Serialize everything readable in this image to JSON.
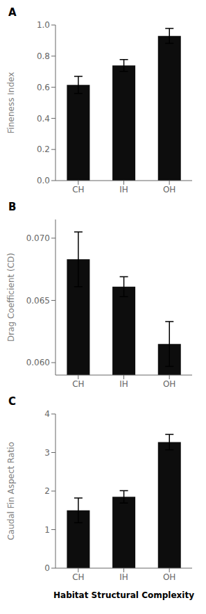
{
  "chart_data": [
    {
      "type": "bar",
      "title": "A",
      "categories": [
        "CH",
        "IH",
        "OH"
      ],
      "values": [
        0.615,
        0.74,
        0.93
      ],
      "errors": [
        0.055,
        0.038,
        0.048
      ],
      "color": "#0d0d0d",
      "ylabel": "Fineness Index",
      "ylim": [
        0.0,
        1.0
      ],
      "yticks": [
        {
          "value": 0.0,
          "label": "0.0"
        },
        0.2,
        0.4,
        0.6,
        0.8,
        {
          "value": 1.0,
          "label": "1.0"
        }
      ],
      "grid": false
    },
    {
      "type": "bar",
      "title": "B",
      "categories": [
        "CH",
        "IH",
        "OH"
      ],
      "values": [
        0.0683,
        0.0661,
        0.0615
      ],
      "errors": [
        0.0022,
        0.0008,
        0.0018
      ],
      "color": "#0d0d0d",
      "ylabel": "Drag Coefficient (CD)",
      "ylim": [
        0.059,
        0.0715
      ],
      "yticks": [
        {
          "value": 0.06,
          "label": "0.060"
        },
        0.065,
        {
          "value": 0.07,
          "label": "0.070"
        }
      ],
      "grid": false
    },
    {
      "type": "bar",
      "title": "C",
      "categories": [
        "CH",
        "IH",
        "OH"
      ],
      "values": [
        1.5,
        1.85,
        3.27
      ],
      "errors": [
        0.32,
        0.16,
        0.2
      ],
      "color": "#0d0d0d",
      "ylabel": "Caudal Fin Aspect Ratio",
      "xlabel": "Habitat Structural Complexity",
      "ylim": [
        0,
        4
      ],
      "yticks": [
        0,
        1,
        2,
        3,
        4
      ],
      "grid": false
    }
  ]
}
